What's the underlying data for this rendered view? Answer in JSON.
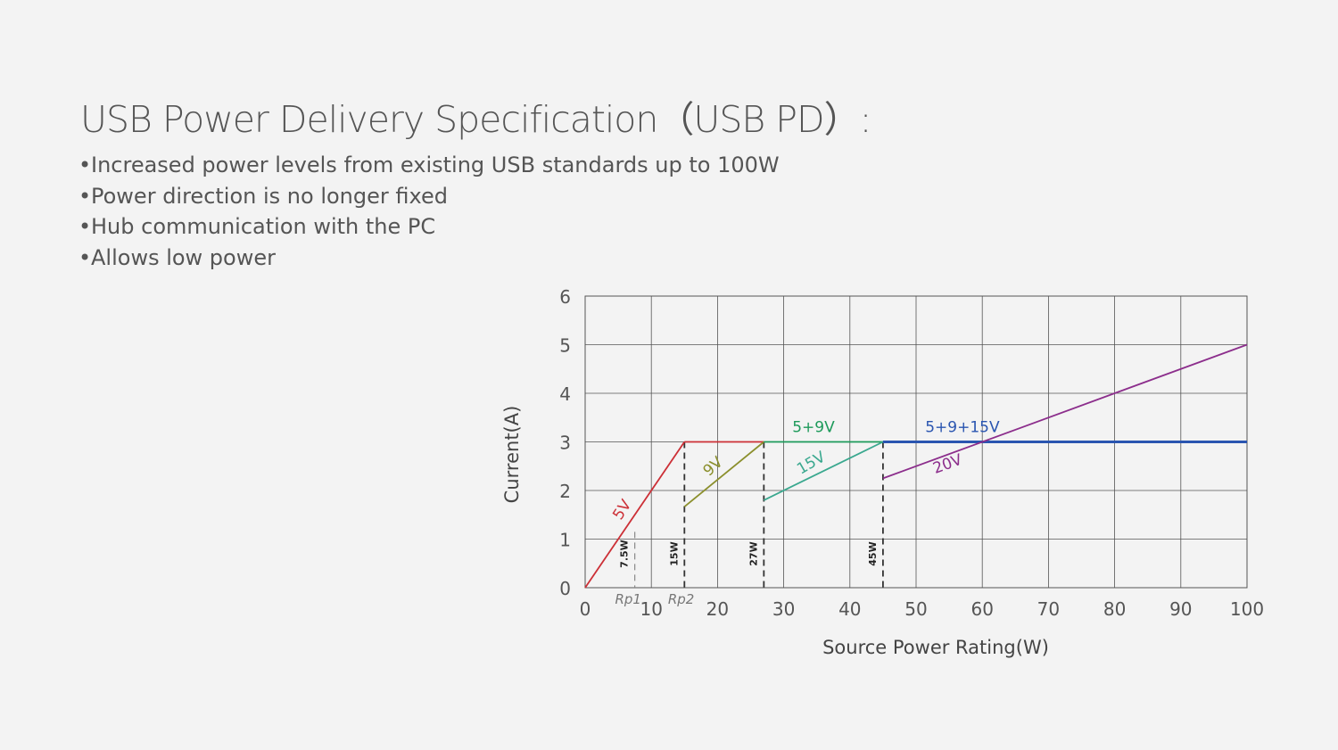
{
  "title": "USB Power Delivery Specification（USB PD）:",
  "bullets": [
    "Increased power levels from existing USB standards up to 100W",
    "Power direction is no longer fixed",
    "Hub communication with the PC",
    "Allows low power"
  ],
  "bullet_char": "•",
  "chart_data": {
    "type": "line",
    "title": "",
    "xlabel": "Source Power Rating(W)",
    "ylabel": "Current(A)",
    "xlim": [
      0,
      100
    ],
    "ylim": [
      0,
      6
    ],
    "xticks": [
      0,
      10,
      20,
      30,
      40,
      50,
      60,
      70,
      80,
      90,
      100
    ],
    "yticks": [
      0,
      1,
      2,
      3,
      4,
      5,
      6
    ],
    "grid": true,
    "series": [
      {
        "name": "5V",
        "color": "#cc2f36",
        "points": [
          [
            0,
            0
          ],
          [
            15,
            3
          ]
        ],
        "label_at": [
          6.2,
          1.55
        ],
        "label_angle": -57
      },
      {
        "name": "",
        "color": "#cc2f36",
        "points": [
          [
            15,
            3
          ],
          [
            27,
            3
          ]
        ]
      },
      {
        "name": "9V",
        "color": "#8b8f2c",
        "points": [
          [
            15,
            1.667
          ],
          [
            27,
            3
          ]
        ],
        "label_at": [
          19.8,
          2.42
        ],
        "label_angle": -42
      },
      {
        "name": "5+9V",
        "color": "#1d9a5a",
        "points": [
          [
            27,
            3
          ],
          [
            45,
            3
          ]
        ],
        "label_at": [
          34.5,
          3.2
        ],
        "label_angle": 0
      },
      {
        "name": "15V",
        "color": "#3aa88f",
        "points": [
          [
            27,
            1.8
          ],
          [
            45,
            3
          ]
        ],
        "label_at": [
          34.5,
          2.48
        ],
        "label_angle": -30
      },
      {
        "name": "5+9+15V",
        "color": "#2a55b0",
        "points": [
          [
            45,
            3
          ],
          [
            100,
            3
          ]
        ],
        "label_at": [
          57,
          3.2
        ],
        "label_angle": 0
      },
      {
        "name": "20V",
        "color": "#8c2e8c",
        "points": [
          [
            45,
            2.25
          ],
          [
            100,
            5
          ]
        ],
        "label_at": [
          55,
          2.45
        ],
        "label_angle": -20
      }
    ],
    "markers": [
      {
        "x": 7.5,
        "label": "7.5W",
        "style": "dashed-light",
        "top": 1.15
      },
      {
        "x": 15,
        "label": "15W",
        "style": "dashed",
        "top": 3
      },
      {
        "x": 27,
        "label": "27W",
        "style": "dashed",
        "top": 3
      },
      {
        "x": 45,
        "label": "45W",
        "style": "dashed",
        "top": 3
      }
    ],
    "annotations": [
      {
        "text": "Rp1",
        "x": 6.5
      },
      {
        "text": "Rp2",
        "x": 14.5
      }
    ]
  }
}
